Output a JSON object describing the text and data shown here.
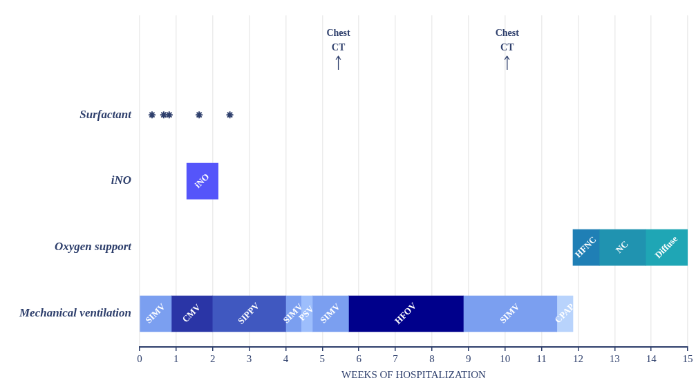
{
  "chart_data": {
    "type": "bar",
    "orientation": "horizontal",
    "xlabel": "WEEKS OF HOSPITALIZATION",
    "categories": [
      "Surfactant",
      "iNO",
      "Oxygen support",
      "Mechanical ventilation"
    ],
    "xlim": [
      0,
      15
    ],
    "xticks": [
      0,
      1,
      2,
      3,
      4,
      5,
      6,
      7,
      8,
      9,
      10,
      11,
      12,
      13,
      14,
      15
    ],
    "grid": "x",
    "legend": false,
    "ref_lines": [
      {
        "axis": "x",
        "value": 5.44,
        "label": "Chest CT"
      },
      {
        "axis": "x",
        "value": 10.06,
        "label": "Chest CT"
      }
    ],
    "series": [
      {
        "name": "SIMV",
        "color": "#7b9ff0",
        "values": [
          null,
          null,
          null,
          0.87
        ],
        "base": [
          null,
          null,
          null,
          0
        ]
      },
      {
        "name": "CMV",
        "color": "#2a35a6",
        "values": [
          null,
          null,
          null,
          1.12
        ],
        "base": [
          null,
          null,
          null,
          0.87
        ]
      },
      {
        "name": "SIPPV",
        "color": "#4058c0",
        "values": [
          null,
          null,
          null,
          2.01
        ],
        "base": [
          null,
          null,
          null,
          1.99
        ]
      },
      {
        "name": "SIMV",
        "color": "#7b9ff0",
        "values": [
          null,
          null,
          null,
          0.42
        ],
        "base": [
          null,
          null,
          null,
          4.0
        ]
      },
      {
        "name": "PSV",
        "color": "#9dbefc",
        "values": [
          null,
          null,
          null,
          0.31
        ],
        "base": [
          null,
          null,
          null,
          4.42
        ]
      },
      {
        "name": "SIMV",
        "color": "#7b9ff0",
        "values": [
          null,
          null,
          null,
          0.99
        ],
        "base": [
          null,
          null,
          null,
          4.73
        ]
      },
      {
        "name": "HFOV",
        "color": "#00008b",
        "values": [
          null,
          null,
          null,
          3.14
        ],
        "base": [
          null,
          null,
          null,
          5.72
        ]
      },
      {
        "name": "SIMV",
        "color": "#7b9ff0",
        "values": [
          null,
          null,
          null,
          2.56
        ],
        "base": [
          null,
          null,
          null,
          8.86
        ]
      },
      {
        "name": "CPAP",
        "color": "#b8d3fc",
        "values": [
          null,
          null,
          null,
          0.44
        ],
        "base": [
          null,
          null,
          null,
          11.42
        ]
      },
      {
        "name": "iNO",
        "color": "#5555fa",
        "values": [
          null,
          0.86,
          null,
          null
        ],
        "base": [
          null,
          1.29,
          null,
          null
        ]
      },
      {
        "name": "HFNC",
        "color": "#1f7fb5",
        "values": [
          null,
          null,
          0.72,
          null
        ],
        "base": [
          null,
          null,
          11.86,
          null
        ]
      },
      {
        "name": "NC",
        "color": "#2093b0",
        "values": [
          null,
          null,
          1.27,
          null
        ],
        "base": [
          null,
          null,
          12.58,
          null
        ]
      },
      {
        "name": "Diffuse",
        "color": "#1fa6b5",
        "values": [
          null,
          null,
          1.15,
          null
        ],
        "base": [
          null,
          null,
          13.85,
          null
        ]
      },
      {
        "type": "scatter",
        "marker": "cross",
        "color": "#2d3e6b",
        "x": [
          "Surfactant",
          "Surfactant",
          "Surfactant",
          "Surfactant",
          "Surfactant"
        ],
        "values": [
          0.34,
          0.66,
          0.81,
          1.63,
          2.47
        ]
      }
    ]
  }
}
